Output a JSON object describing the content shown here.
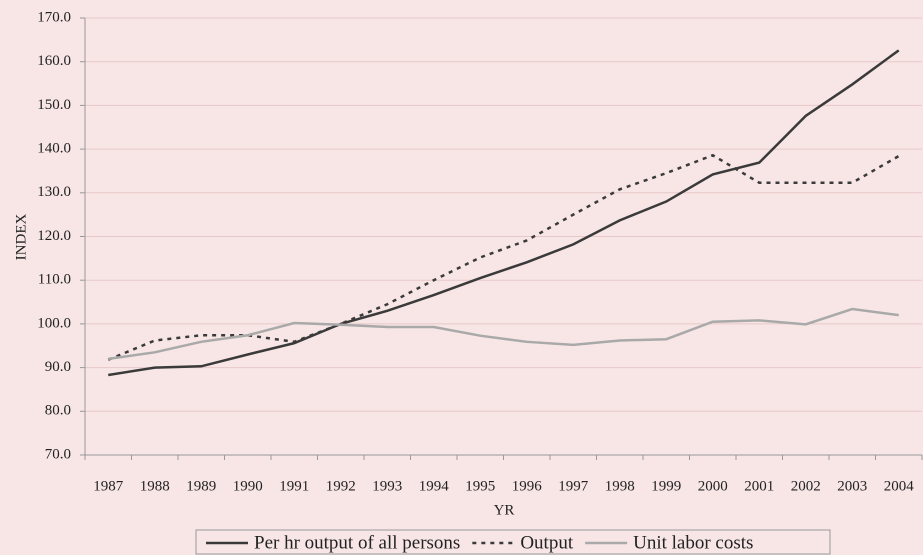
{
  "chart_data": {
    "type": "line",
    "y_axis_label": "INDEX",
    "x_axis_label": "YR",
    "categories": [
      "1987",
      "1988",
      "1989",
      "1990",
      "1991",
      "1992",
      "1993",
      "1994",
      "1995",
      "1996",
      "1997",
      "1998",
      "1999",
      "2000",
      "2001",
      "2002",
      "2003",
      "2004"
    ],
    "series": [
      {
        "name": "Per hr output of all persons",
        "color": "#3a3a3a",
        "dash": "solid",
        "values": [
          88.3,
          90.0,
          90.3,
          93.0,
          95.6,
          100.0,
          103.0,
          106.6,
          110.5,
          114.1,
          118.2,
          123.7,
          128.0,
          134.2,
          136.9,
          147.6,
          154.8,
          162.6
        ]
      },
      {
        "name": "Output",
        "color": "#3a3a3a",
        "dash": "dotted",
        "values": [
          91.8,
          96.2,
          97.4,
          97.4,
          95.9,
          100.0,
          104.5,
          110.0,
          115.2,
          119.1,
          125.0,
          130.8,
          134.5,
          138.6,
          132.3,
          132.3,
          132.3,
          138.4
        ]
      },
      {
        "name": "Unit labor costs",
        "color": "#a9a9a9",
        "dash": "solid",
        "values": [
          92.0,
          93.5,
          95.9,
          97.4,
          100.2,
          99.8,
          99.3,
          99.3,
          97.3,
          95.9,
          95.2,
          96.2,
          96.5,
          100.5,
          100.8,
          99.9,
          103.4,
          102.0
        ]
      }
    ],
    "ylim": [
      70,
      170
    ],
    "yticks": [
      {
        "value": 70,
        "label": "70.0"
      },
      {
        "value": 80,
        "label": "80.0"
      },
      {
        "value": 90,
        "label": "90.0"
      },
      {
        "value": 100,
        "label": "100.0"
      },
      {
        "value": 110,
        "label": "110.0"
      },
      {
        "value": 120,
        "label": "120.0"
      },
      {
        "value": 130,
        "label": "130.0"
      },
      {
        "value": 140,
        "label": "140.0"
      },
      {
        "value": 150,
        "label": "150.0"
      },
      {
        "value": 160,
        "label": "160.0"
      },
      {
        "value": 170,
        "label": "170.0"
      }
    ],
    "grid": true,
    "legend": "bottom"
  }
}
